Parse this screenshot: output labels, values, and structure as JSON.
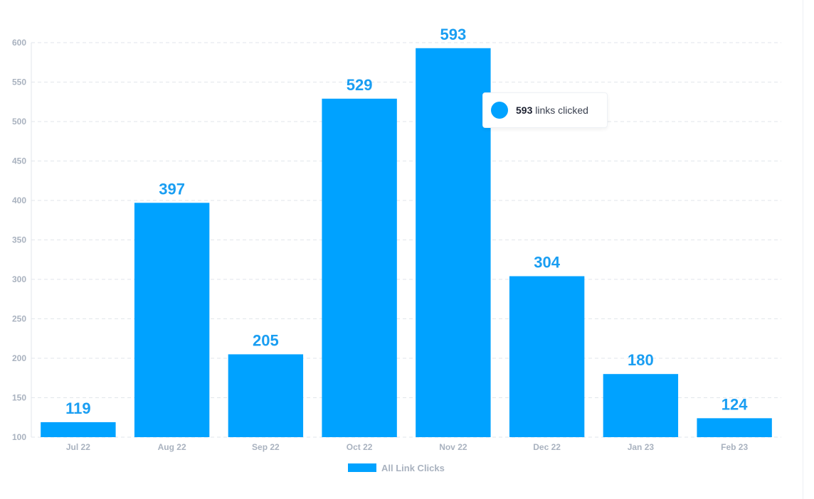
{
  "colors": {
    "bar": "#00a2ff",
    "label": "#1a9ef2",
    "grid": "#e2e6eb",
    "axis_text": "#a9b2bf"
  },
  "tooltip": {
    "value": "593",
    "text": "links clicked"
  },
  "legend": {
    "label": "All Link Clicks",
    "position": "bottom-center"
  },
  "chart_data": {
    "type": "bar",
    "title": "",
    "xlabel": "",
    "ylabel": "",
    "categories": [
      "Jul 22",
      "Aug 22",
      "Sep 22",
      "Oct 22",
      "Nov 22",
      "Dec 22",
      "Jan 23",
      "Feb 23"
    ],
    "series": [
      {
        "name": "All Link Clicks",
        "values": [
          119,
          397,
          205,
          529,
          593,
          304,
          180,
          124
        ]
      }
    ],
    "ylim": [
      100,
      600
    ],
    "yticks": [
      100,
      150,
      200,
      250,
      300,
      350,
      400,
      450,
      500,
      550,
      600
    ],
    "grid": true,
    "data_labels": true
  }
}
